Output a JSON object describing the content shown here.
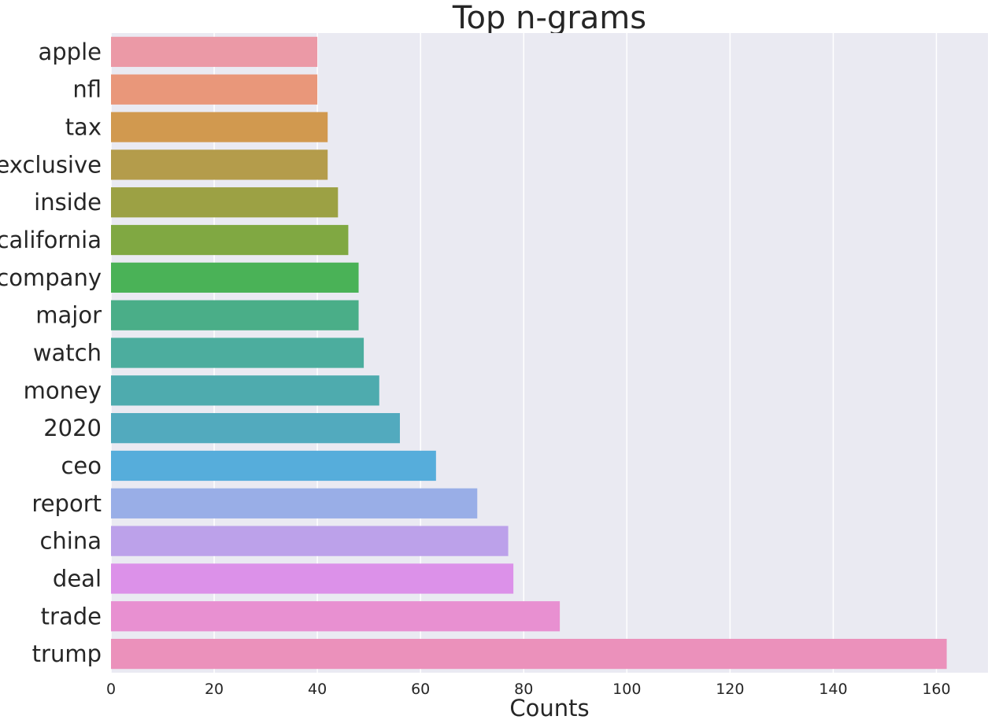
{
  "chart_data": {
    "type": "bar",
    "orientation": "horizontal",
    "title": "Top n-grams",
    "xlabel": "Counts",
    "ylabel": "",
    "xlim": [
      0,
      170
    ],
    "xticks": [
      0,
      20,
      40,
      60,
      80,
      100,
      120,
      140,
      160
    ],
    "grid": true,
    "categories": [
      "apple",
      "nfl",
      "tax",
      "exclusive",
      "inside",
      "california",
      "company",
      "major",
      "watch",
      "money",
      "2020",
      "ceo",
      "report",
      "china",
      "deal",
      "trade",
      "trump"
    ],
    "values": [
      40,
      40,
      42,
      42,
      44,
      46,
      48,
      48,
      49,
      52,
      56,
      63,
      71,
      77,
      78,
      87,
      162
    ],
    "colors": [
      "#eb99a6",
      "#e9977a",
      "#d1994f",
      "#b49c4b",
      "#9ca144",
      "#80a842",
      "#4ab257",
      "#4aae88",
      "#4cad9e",
      "#4eabae",
      "#52aabe",
      "#56addb",
      "#99aee7",
      "#bca1ea",
      "#dc91e9",
      "#e890d1",
      "#eb91bb"
    ],
    "background_color": "#eaeaf2",
    "grid_color": "#ffffff"
  }
}
